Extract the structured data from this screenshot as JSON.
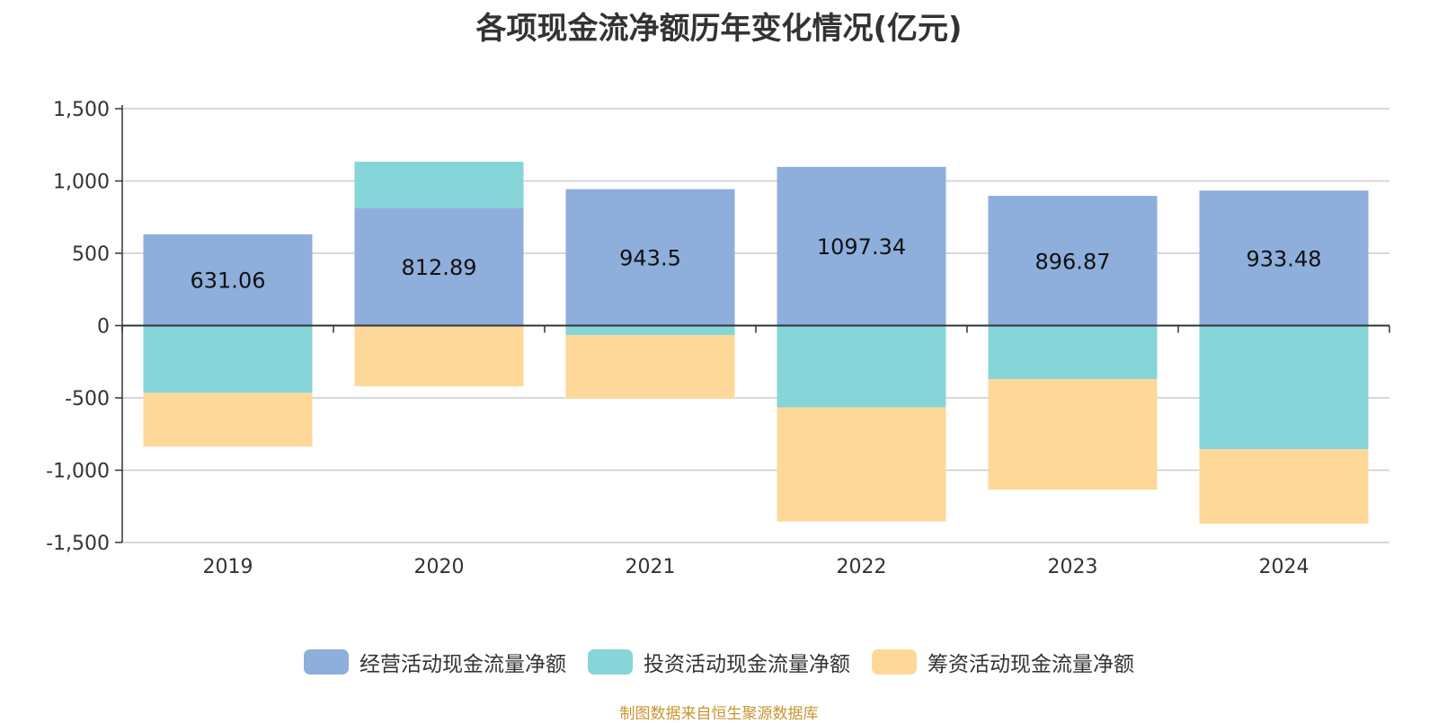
{
  "chart_data": {
    "type": "bar",
    "stacked": true,
    "title": "各项现金流净额历年变化情况(亿元)",
    "categories": [
      "2019",
      "2020",
      "2021",
      "2022",
      "2023",
      "2024"
    ],
    "series": [
      {
        "name": "经营活动现金流量净额",
        "color": "#8eaedb",
        "values": [
          631.06,
          812.89,
          943.5,
          1097.34,
          896.87,
          933.48
        ],
        "labels": [
          "631.06",
          "812.89",
          "943.5",
          "1097.34",
          "896.87",
          "933.48"
        ]
      },
      {
        "name": "投资活动现金流量净额",
        "color": "#86d5d8",
        "values": [
          -465,
          320,
          -65,
          -565,
          -370,
          -855
        ]
      },
      {
        "name": "筹资活动现金流量净额",
        "color": "#fdd898",
        "values": [
          -372,
          -420,
          -440,
          -790,
          -765,
          -515
        ]
      }
    ],
    "yticks": [
      1500,
      1000,
      500,
      0,
      -500,
      -1000,
      -1500
    ],
    "ytick_labels": [
      "1,500",
      "1,000",
      "500",
      "0",
      "-500",
      "-1,000",
      "-1,500"
    ],
    "ylim": [
      -1500,
      1500
    ],
    "xlabel": "",
    "ylabel": "",
    "grid": true,
    "legend_position": "bottom"
  },
  "source": "制图数据来自恒生聚源数据库"
}
